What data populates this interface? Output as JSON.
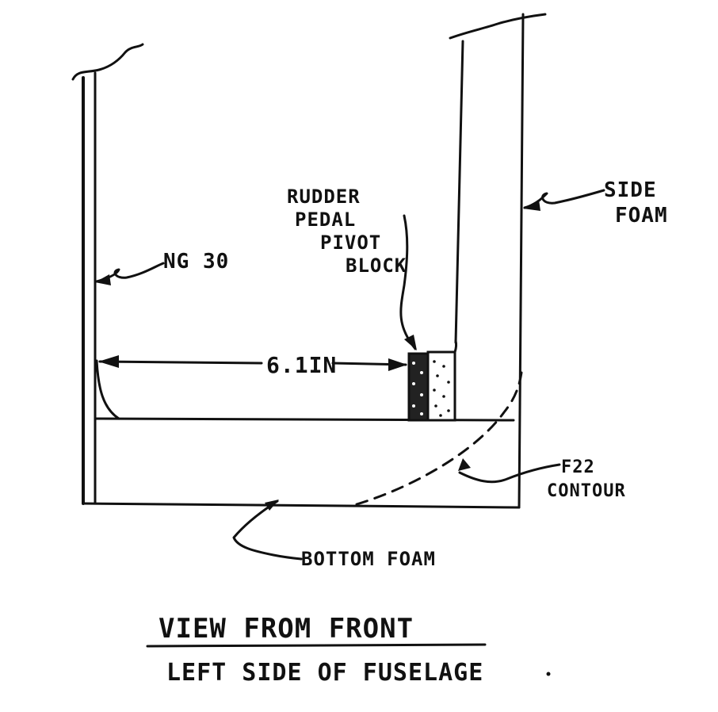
{
  "labels": {
    "rudder_pedal_pivot_block": [
      "RUDDER",
      "PEDAL",
      "PIVOT",
      "BLOCK"
    ],
    "side_foam": [
      "SIDE",
      "FOAM"
    ],
    "ng30": "NG 30",
    "dimension": "6.1IN",
    "f22_contour": [
      "F22",
      "CONTOUR"
    ],
    "bottom_foam": "BOTTOM FOAM",
    "title": "VIEW FROM FRONT",
    "subtitle": "LEFT SIDE OF FUSELAGE"
  },
  "colors": {
    "ink": "#111111",
    "paper": "#ffffff"
  }
}
